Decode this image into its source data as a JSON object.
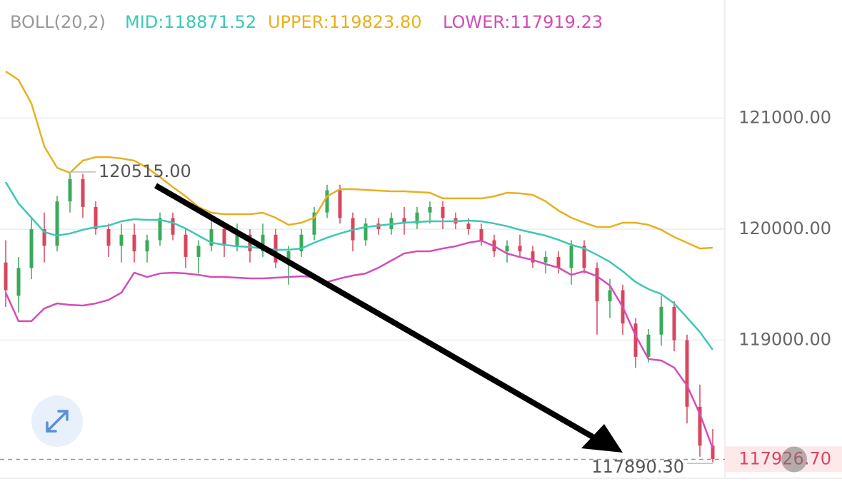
{
  "chart_data": {
    "type": "candlestick",
    "indicator": {
      "name": "BOLL(20,2)",
      "mid": "MID:118871.52",
      "upper": "UPPER:119823.80",
      "lower": "LOWER:117919.23"
    },
    "ylim": [
      117756,
      122064
    ],
    "yticks": [
      {
        "value": 121000,
        "label": "121000.00"
      },
      {
        "value": 120000,
        "label": "120000.00"
      },
      {
        "value": 119000,
        "label": "119000.00"
      }
    ],
    "grid": true,
    "up_color": "#3aaa5a",
    "down_color": "#d8465e",
    "ohlc": [
      [
        119700,
        119900,
        119300,
        119450
      ],
      [
        119400,
        119750,
        119250,
        119650
      ],
      [
        119650,
        120100,
        119550,
        120000
      ],
      [
        120000,
        120150,
        119700,
        119850
      ],
      [
        119850,
        120300,
        119800,
        120250
      ],
      [
        120250,
        120500,
        120150,
        120450
      ],
      [
        120450,
        120500,
        120100,
        120200
      ],
      [
        120200,
        120250,
        119950,
        120000
      ],
      [
        120000,
        120050,
        119750,
        119850
      ],
      [
        119850,
        120050,
        119700,
        119950
      ],
      [
        119950,
        120050,
        119700,
        119800
      ],
      [
        119800,
        119950,
        119700,
        119900
      ],
      [
        119900,
        120150,
        119850,
        120100
      ],
      [
        120100,
        120150,
        119900,
        119950
      ],
      [
        119950,
        120000,
        119650,
        119750
      ],
      [
        119750,
        119900,
        119600,
        119850
      ],
      [
        119850,
        120100,
        119800,
        120000
      ],
      [
        120000,
        120050,
        119750,
        119850
      ],
      [
        119850,
        120050,
        119800,
        119950
      ],
      [
        119950,
        120000,
        119700,
        119800
      ],
      [
        119800,
        120050,
        119750,
        119950
      ],
      [
        119950,
        120000,
        119650,
        119700
      ],
      [
        119700,
        119850,
        119500,
        119800
      ],
      [
        119800,
        120000,
        119750,
        119950
      ],
      [
        119950,
        120200,
        119900,
        120150
      ],
      [
        120150,
        120400,
        120100,
        120350
      ],
      [
        120350,
        120400,
        120050,
        120100
      ],
      [
        120100,
        120150,
        119800,
        119900
      ],
      [
        119900,
        120100,
        119850,
        120050
      ],
      [
        120050,
        120100,
        119950,
        120000
      ],
      [
        120000,
        120150,
        119950,
        120100
      ],
      [
        120100,
        120200,
        119950,
        120050
      ],
      [
        120050,
        120200,
        120000,
        120150
      ],
      [
        120150,
        120250,
        120050,
        120200
      ],
      [
        120200,
        120250,
        120000,
        120100
      ],
      [
        120100,
        120150,
        120000,
        120050
      ],
      [
        120050,
        120100,
        119950,
        120000
      ],
      [
        120000,
        120050,
        119850,
        119900
      ],
      [
        119900,
        119950,
        119750,
        119800
      ],
      [
        119800,
        119900,
        119700,
        119850
      ],
      [
        119850,
        119950,
        119750,
        119800
      ],
      [
        119800,
        119850,
        119650,
        119700
      ],
      [
        119700,
        119800,
        119600,
        119750
      ],
      [
        119750,
        119800,
        119600,
        119650
      ],
      [
        119650,
        119900,
        119500,
        119850
      ],
      [
        119850,
        119900,
        119600,
        119650
      ],
      [
        119650,
        119700,
        119050,
        119350
      ],
      [
        119350,
        119550,
        119200,
        119450
      ],
      [
        119450,
        119500,
        119050,
        119150
      ],
      [
        119150,
        119200,
        118750,
        118850
      ],
      [
        118850,
        119100,
        118800,
        119050
      ],
      [
        119050,
        119400,
        118950,
        119300
      ],
      [
        119300,
        119350,
        118900,
        119000
      ],
      [
        119000,
        119050,
        118250,
        118400
      ],
      [
        118400,
        118600,
        117950,
        118050
      ],
      [
        118050,
        118200,
        117900,
        117930
      ]
    ],
    "series": [
      {
        "name": "UPPER",
        "color": "#e8b020",
        "values": [
          121421,
          121344,
          121132,
          120746,
          120553,
          120508,
          120617,
          120649,
          120649,
          120637,
          120617,
          120553,
          120469,
          120379,
          120296,
          120199,
          120148,
          120135,
          120135,
          120135,
          120148,
          120103,
          120039,
          120058,
          120103,
          120296,
          120360,
          120360,
          120354,
          120347,
          120341,
          120341,
          120334,
          120328,
          120277,
          120277,
          120277,
          120277,
          120296,
          120328,
          120322,
          120309,
          120251,
          120167,
          120103,
          120058,
          120019,
          120019,
          120058,
          120058,
          120039,
          119994,
          119929,
          119878,
          119826,
          119833
        ]
      },
      {
        "name": "MID",
        "color": "#3cc8b4",
        "values": [
          120424,
          120231,
          120103,
          119974,
          119942,
          119961,
          119994,
          120019,
          120032,
          120071,
          120090,
          120084,
          120084,
          120058,
          120006,
          119942,
          119878,
          119859,
          119846,
          119839,
          119826,
          119814,
          119814,
          119826,
          119878,
          119923,
          119961,
          119994,
          120019,
          120032,
          120045,
          120058,
          120064,
          120071,
          120071,
          120071,
          120077,
          120071,
          120051,
          120026,
          119994,
          119968,
          119942,
          119904,
          119859,
          119826,
          119769,
          119705,
          119621,
          119524,
          119460,
          119415,
          119331,
          119203,
          119074,
          118913
        ]
      },
      {
        "name": "LOWER",
        "color": "#d44cb8",
        "values": [
          119428,
          119171,
          119171,
          119286,
          119331,
          119318,
          119312,
          119331,
          119363,
          119428,
          119608,
          119569,
          119601,
          119608,
          119601,
          119588,
          119569,
          119569,
          119563,
          119556,
          119556,
          119563,
          119569,
          119576,
          119569,
          119524,
          119556,
          119582,
          119601,
          119653,
          119717,
          119781,
          119801,
          119801,
          119826,
          119846,
          119878,
          119897,
          119846,
          119781,
          119749,
          119723,
          119685,
          119653,
          119588,
          119621,
          119576,
          119492,
          119299,
          119042,
          118830,
          118817,
          118753,
          118592,
          118335,
          118026
        ]
      }
    ],
    "max_label": {
      "value": 120515,
      "label": "120515.00"
    },
    "min_label": {
      "value": 117890.3,
      "label": "117890.30"
    },
    "last_price": {
      "value": 117926.7,
      "label": "117926.70"
    }
  }
}
